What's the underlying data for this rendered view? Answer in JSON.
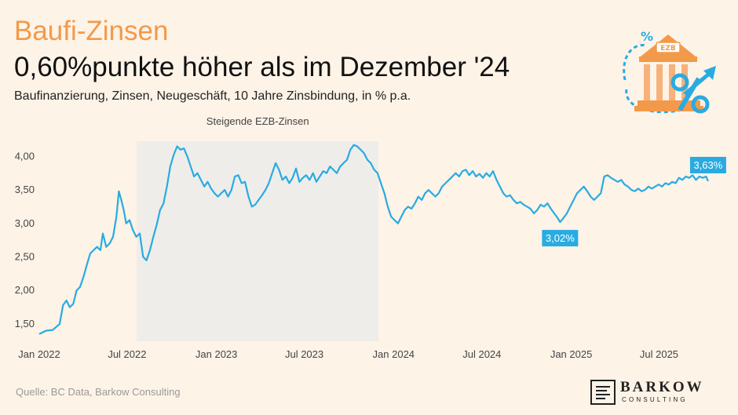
{
  "header": {
    "kicker": "Baufi-Zinsen",
    "headline": "0,60%punkte höher als im Dezember '24",
    "subtitle": "Baufinanzierung, Zinsen, Neugeschäft, 10 Jahre Zinsbindung, in % p.a."
  },
  "footer": {
    "source": "Quelle: BC Data, Barkow Consulting",
    "logo_name": "BARKOW",
    "logo_sub": "CONSULTING"
  },
  "illustration": {
    "sign_text": "EZB",
    "icon": "bank-building-percent-icon"
  },
  "colors": {
    "line": "#29abe2",
    "shade": "#efedea",
    "accent": "#f29a4a",
    "background": "#fdf3e7"
  },
  "chart_data": {
    "type": "line",
    "x_unit": "date",
    "y_unit": "% p.a.",
    "ylim": [
      1.3,
      4.25
    ],
    "y_ticks": [
      1.5,
      2.0,
      2.5,
      3.0,
      3.5,
      4.0
    ],
    "y_tick_labels": [
      "1,50",
      "2,00",
      "2,50",
      "3,00",
      "3,50",
      "4,00"
    ],
    "x_ticks": [
      "2022-01",
      "2022-07",
      "2023-01",
      "2023-07",
      "2024-01",
      "2024-07",
      "2025-01",
      "2025-07"
    ],
    "x_tick_labels": [
      "Jan 2022",
      "Jul 2022",
      "Jan 2023",
      "Jul 2023",
      "Jan 2024",
      "Jul 2024",
      "Jan 2025",
      "Jul 2025"
    ],
    "grid": false,
    "shaded_period": {
      "label": "Steigende EZB-Zinsen",
      "from": "2022-07-21",
      "to": "2023-12-01"
    },
    "annotations": [
      {
        "x": "2024-12-09",
        "y": 3.02,
        "text": "3,02%",
        "position": "below"
      },
      {
        "x": "2025-10-10",
        "y": 3.63,
        "text": "3,63%",
        "position": "above"
      }
    ],
    "series": [
      {
        "values": [
          {
            "x": "2022-01-01",
            "y": 1.35
          },
          {
            "x": "2022-01-15",
            "y": 1.4
          },
          {
            "x": "2022-01-29",
            "y": 1.41
          },
          {
            "x": "2022-02-12",
            "y": 1.5
          },
          {
            "x": "2022-02-19",
            "y": 1.78
          },
          {
            "x": "2022-02-26",
            "y": 1.85
          },
          {
            "x": "2022-03-05",
            "y": 1.75
          },
          {
            "x": "2022-03-12",
            "y": 1.8
          },
          {
            "x": "2022-03-19",
            "y": 2.0
          },
          {
            "x": "2022-03-26",
            "y": 2.05
          },
          {
            "x": "2022-04-02",
            "y": 2.2
          },
          {
            "x": "2022-04-09",
            "y": 2.38
          },
          {
            "x": "2022-04-16",
            "y": 2.55
          },
          {
            "x": "2022-04-23",
            "y": 2.6
          },
          {
            "x": "2022-04-30",
            "y": 2.65
          },
          {
            "x": "2022-05-07",
            "y": 2.6
          },
          {
            "x": "2022-05-12",
            "y": 2.85
          },
          {
            "x": "2022-05-19",
            "y": 2.65
          },
          {
            "x": "2022-05-26",
            "y": 2.7
          },
          {
            "x": "2022-06-02",
            "y": 2.8
          },
          {
            "x": "2022-06-09",
            "y": 3.1
          },
          {
            "x": "2022-06-14",
            "y": 3.48
          },
          {
            "x": "2022-06-19",
            "y": 3.35
          },
          {
            "x": "2022-06-24",
            "y": 3.2
          },
          {
            "x": "2022-06-29",
            "y": 3.0
          },
          {
            "x": "2022-07-06",
            "y": 3.05
          },
          {
            "x": "2022-07-13",
            "y": 2.9
          },
          {
            "x": "2022-07-20",
            "y": 2.8
          },
          {
            "x": "2022-07-27",
            "y": 2.85
          },
          {
            "x": "2022-08-03",
            "y": 2.5
          },
          {
            "x": "2022-08-10",
            "y": 2.45
          },
          {
            "x": "2022-08-17",
            "y": 2.6
          },
          {
            "x": "2022-08-24",
            "y": 2.8
          },
          {
            "x": "2022-08-31",
            "y": 2.98
          },
          {
            "x": "2022-09-07",
            "y": 3.2
          },
          {
            "x": "2022-09-14",
            "y": 3.3
          },
          {
            "x": "2022-09-21",
            "y": 3.55
          },
          {
            "x": "2022-09-28",
            "y": 3.85
          },
          {
            "x": "2022-10-05",
            "y": 4.02
          },
          {
            "x": "2022-10-12",
            "y": 4.15
          },
          {
            "x": "2022-10-19",
            "y": 4.1
          },
          {
            "x": "2022-10-26",
            "y": 4.12
          },
          {
            "x": "2022-11-02",
            "y": 4.0
          },
          {
            "x": "2022-11-09",
            "y": 3.85
          },
          {
            "x": "2022-11-16",
            "y": 3.7
          },
          {
            "x": "2022-11-23",
            "y": 3.75
          },
          {
            "x": "2022-11-30",
            "y": 3.65
          },
          {
            "x": "2022-12-07",
            "y": 3.55
          },
          {
            "x": "2022-12-14",
            "y": 3.62
          },
          {
            "x": "2022-12-21",
            "y": 3.52
          },
          {
            "x": "2022-12-28",
            "y": 3.45
          },
          {
            "x": "2023-01-04",
            "y": 3.4
          },
          {
            "x": "2023-01-11",
            "y": 3.45
          },
          {
            "x": "2023-01-18",
            "y": 3.5
          },
          {
            "x": "2023-01-25",
            "y": 3.4
          },
          {
            "x": "2023-02-01",
            "y": 3.5
          },
          {
            "x": "2023-02-08",
            "y": 3.7
          },
          {
            "x": "2023-02-15",
            "y": 3.72
          },
          {
            "x": "2023-02-22",
            "y": 3.6
          },
          {
            "x": "2023-03-01",
            "y": 3.62
          },
          {
            "x": "2023-03-08",
            "y": 3.4
          },
          {
            "x": "2023-03-15",
            "y": 3.25
          },
          {
            "x": "2023-03-22",
            "y": 3.28
          },
          {
            "x": "2023-03-29",
            "y": 3.35
          },
          {
            "x": "2023-04-05",
            "y": 3.42
          },
          {
            "x": "2023-04-12",
            "y": 3.5
          },
          {
            "x": "2023-04-19",
            "y": 3.6
          },
          {
            "x": "2023-04-26",
            "y": 3.75
          },
          {
            "x": "2023-05-03",
            "y": 3.9
          },
          {
            "x": "2023-05-10",
            "y": 3.8
          },
          {
            "x": "2023-05-17",
            "y": 3.65
          },
          {
            "x": "2023-05-24",
            "y": 3.7
          },
          {
            "x": "2023-05-31",
            "y": 3.6
          },
          {
            "x": "2023-06-07",
            "y": 3.68
          },
          {
            "x": "2023-06-14",
            "y": 3.82
          },
          {
            "x": "2023-06-21",
            "y": 3.62
          },
          {
            "x": "2023-06-28",
            "y": 3.68
          },
          {
            "x": "2023-07-05",
            "y": 3.72
          },
          {
            "x": "2023-07-12",
            "y": 3.65
          },
          {
            "x": "2023-07-19",
            "y": 3.75
          },
          {
            "x": "2023-07-26",
            "y": 3.62
          },
          {
            "x": "2023-08-02",
            "y": 3.7
          },
          {
            "x": "2023-08-09",
            "y": 3.78
          },
          {
            "x": "2023-08-16",
            "y": 3.75
          },
          {
            "x": "2023-08-23",
            "y": 3.85
          },
          {
            "x": "2023-08-30",
            "y": 3.8
          },
          {
            "x": "2023-09-06",
            "y": 3.75
          },
          {
            "x": "2023-09-13",
            "y": 3.85
          },
          {
            "x": "2023-09-20",
            "y": 3.9
          },
          {
            "x": "2023-09-27",
            "y": 3.95
          },
          {
            "x": "2023-10-04",
            "y": 4.1
          },
          {
            "x": "2023-10-11",
            "y": 4.17
          },
          {
            "x": "2023-10-18",
            "y": 4.15
          },
          {
            "x": "2023-10-25",
            "y": 4.1
          },
          {
            "x": "2023-11-01",
            "y": 4.05
          },
          {
            "x": "2023-11-08",
            "y": 3.95
          },
          {
            "x": "2023-11-15",
            "y": 3.9
          },
          {
            "x": "2023-11-22",
            "y": 3.8
          },
          {
            "x": "2023-11-29",
            "y": 3.75
          },
          {
            "x": "2023-12-06",
            "y": 3.6
          },
          {
            "x": "2023-12-13",
            "y": 3.45
          },
          {
            "x": "2023-12-20",
            "y": 3.25
          },
          {
            "x": "2023-12-27",
            "y": 3.1
          },
          {
            "x": "2024-01-03",
            "y": 3.05
          },
          {
            "x": "2024-01-10",
            "y": 3.0
          },
          {
            "x": "2024-01-17",
            "y": 3.1
          },
          {
            "x": "2024-01-24",
            "y": 3.2
          },
          {
            "x": "2024-01-31",
            "y": 3.25
          },
          {
            "x": "2024-02-07",
            "y": 3.22
          },
          {
            "x": "2024-02-14",
            "y": 3.3
          },
          {
            "x": "2024-02-21",
            "y": 3.4
          },
          {
            "x": "2024-02-28",
            "y": 3.35
          },
          {
            "x": "2024-03-06",
            "y": 3.45
          },
          {
            "x": "2024-03-13",
            "y": 3.5
          },
          {
            "x": "2024-03-20",
            "y": 3.45
          },
          {
            "x": "2024-03-27",
            "y": 3.4
          },
          {
            "x": "2024-04-03",
            "y": 3.45
          },
          {
            "x": "2024-04-10",
            "y": 3.55
          },
          {
            "x": "2024-04-17",
            "y": 3.6
          },
          {
            "x": "2024-04-24",
            "y": 3.65
          },
          {
            "x": "2024-05-01",
            "y": 3.7
          },
          {
            "x": "2024-05-08",
            "y": 3.75
          },
          {
            "x": "2024-05-15",
            "y": 3.7
          },
          {
            "x": "2024-05-22",
            "y": 3.78
          },
          {
            "x": "2024-05-29",
            "y": 3.8
          },
          {
            "x": "2024-06-05",
            "y": 3.72
          },
          {
            "x": "2024-06-12",
            "y": 3.78
          },
          {
            "x": "2024-06-19",
            "y": 3.7
          },
          {
            "x": "2024-06-26",
            "y": 3.74
          },
          {
            "x": "2024-07-03",
            "y": 3.68
          },
          {
            "x": "2024-07-10",
            "y": 3.75
          },
          {
            "x": "2024-07-17",
            "y": 3.7
          },
          {
            "x": "2024-07-24",
            "y": 3.78
          },
          {
            "x": "2024-07-31",
            "y": 3.65
          },
          {
            "x": "2024-08-07",
            "y": 3.55
          },
          {
            "x": "2024-08-14",
            "y": 3.45
          },
          {
            "x": "2024-08-21",
            "y": 3.4
          },
          {
            "x": "2024-08-28",
            "y": 3.42
          },
          {
            "x": "2024-09-04",
            "y": 3.35
          },
          {
            "x": "2024-09-11",
            "y": 3.3
          },
          {
            "x": "2024-09-18",
            "y": 3.32
          },
          {
            "x": "2024-09-25",
            "y": 3.28
          },
          {
            "x": "2024-10-02",
            "y": 3.25
          },
          {
            "x": "2024-10-09",
            "y": 3.22
          },
          {
            "x": "2024-10-16",
            "y": 3.15
          },
          {
            "x": "2024-10-23",
            "y": 3.2
          },
          {
            "x": "2024-10-30",
            "y": 3.28
          },
          {
            "x": "2024-11-06",
            "y": 3.25
          },
          {
            "x": "2024-11-13",
            "y": 3.3
          },
          {
            "x": "2024-11-20",
            "y": 3.22
          },
          {
            "x": "2024-11-27",
            "y": 3.15
          },
          {
            "x": "2024-12-04",
            "y": 3.08
          },
          {
            "x": "2024-12-09",
            "y": 3.02
          },
          {
            "x": "2024-12-16",
            "y": 3.08
          },
          {
            "x": "2024-12-23",
            "y": 3.15
          },
          {
            "x": "2024-12-30",
            "y": 3.25
          },
          {
            "x": "2025-01-06",
            "y": 3.35
          },
          {
            "x": "2025-01-13",
            "y": 3.45
          },
          {
            "x": "2025-01-20",
            "y": 3.5
          },
          {
            "x": "2025-01-27",
            "y": 3.55
          },
          {
            "x": "2025-02-03",
            "y": 3.48
          },
          {
            "x": "2025-02-10",
            "y": 3.4
          },
          {
            "x": "2025-02-17",
            "y": 3.35
          },
          {
            "x": "2025-02-24",
            "y": 3.4
          },
          {
            "x": "2025-03-03",
            "y": 3.45
          },
          {
            "x": "2025-03-10",
            "y": 3.7
          },
          {
            "x": "2025-03-17",
            "y": 3.72
          },
          {
            "x": "2025-03-24",
            "y": 3.68
          },
          {
            "x": "2025-03-31",
            "y": 3.65
          },
          {
            "x": "2025-04-07",
            "y": 3.62
          },
          {
            "x": "2025-04-14",
            "y": 3.65
          },
          {
            "x": "2025-04-21",
            "y": 3.58
          },
          {
            "x": "2025-04-28",
            "y": 3.55
          },
          {
            "x": "2025-05-05",
            "y": 3.5
          },
          {
            "x": "2025-05-12",
            "y": 3.48
          },
          {
            "x": "2025-05-19",
            "y": 3.52
          },
          {
            "x": "2025-05-26",
            "y": 3.48
          },
          {
            "x": "2025-06-02",
            "y": 3.5
          },
          {
            "x": "2025-06-09",
            "y": 3.55
          },
          {
            "x": "2025-06-16",
            "y": 3.52
          },
          {
            "x": "2025-06-23",
            "y": 3.55
          },
          {
            "x": "2025-06-30",
            "y": 3.58
          },
          {
            "x": "2025-07-07",
            "y": 3.55
          },
          {
            "x": "2025-07-14",
            "y": 3.6
          },
          {
            "x": "2025-07-21",
            "y": 3.58
          },
          {
            "x": "2025-07-28",
            "y": 3.62
          },
          {
            "x": "2025-08-04",
            "y": 3.6
          },
          {
            "x": "2025-08-11",
            "y": 3.68
          },
          {
            "x": "2025-08-18",
            "y": 3.65
          },
          {
            "x": "2025-08-25",
            "y": 3.7
          },
          {
            "x": "2025-09-01",
            "y": 3.68
          },
          {
            "x": "2025-09-08",
            "y": 3.72
          },
          {
            "x": "2025-09-15",
            "y": 3.65
          },
          {
            "x": "2025-09-22",
            "y": 3.7
          },
          {
            "x": "2025-09-29",
            "y": 3.68
          },
          {
            "x": "2025-10-06",
            "y": 3.7
          },
          {
            "x": "2025-10-10",
            "y": 3.63
          }
        ]
      }
    ]
  }
}
